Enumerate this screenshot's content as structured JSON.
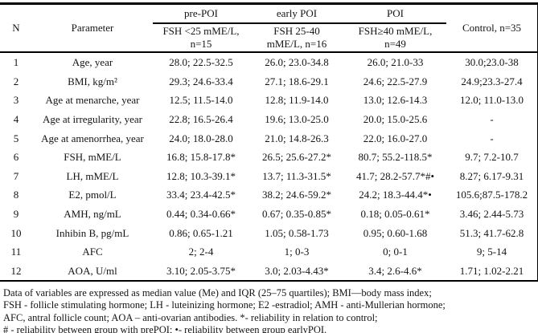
{
  "colors": {
    "border": "#000000",
    "text": "#141414",
    "background": "#ffffff"
  },
  "table": {
    "header": {
      "col_n": "N",
      "col_parameter": "Parameter",
      "groups": [
        {
          "label": "pre-POI",
          "sub": "FSH <25 mME/L,\nn=15"
        },
        {
          "label": "early POI",
          "sub": "FSH 25-40\nmME/L, n=16"
        },
        {
          "label": "POI",
          "sub": "FSH≥40 mME/L,\nn=49"
        }
      ],
      "col_control": "Control, n=35"
    },
    "rows": [
      {
        "n": "1",
        "parameter": "Age, year",
        "pre_poi": "28.0; 22.5-32.5",
        "early_poi": "26.0; 23.0-34.8",
        "poi": "26.0; 21.0-33",
        "control": "30.0;23.0-38"
      },
      {
        "n": "2",
        "parameter": "BMI, kg/m²",
        "pre_poi": "29.3; 24.6-33.4",
        "early_poi": "27.1; 18.6-29.1",
        "poi": "24.6; 22.5-27.9",
        "control": "24.9;23.3-27.4"
      },
      {
        "n": "3",
        "parameter": "Age at menarche, year",
        "pre_poi": "12.5; 11.5-14.0",
        "early_poi": "12.8; 11.9-14.0",
        "poi": "13.0; 12.6-14.3",
        "control": "12.0; 11.0-13.0"
      },
      {
        "n": "4",
        "parameter": "Age at irregularity, year",
        "pre_poi": "22.8; 16.5-26.4",
        "early_poi": "19.6; 13.0-25.0",
        "poi": "20.0; 15.0-25.6",
        "control": "-"
      },
      {
        "n": "5",
        "parameter": "Age at amenorrhea, year",
        "pre_poi": "24.0; 18.0-28.0",
        "early_poi": "21.0; 14.8-26.3",
        "poi": "22.0; 16.0-27.0",
        "control": "-"
      },
      {
        "n": "6",
        "parameter": "FSH, mME/L",
        "pre_poi": "16.8; 15.8-17.8*",
        "early_poi": "26.5; 25.6-27.2*",
        "poi": "80.7; 55.2-118.5*",
        "control": "9.7; 7.2-10.7"
      },
      {
        "n": "7",
        "parameter": "LH, mME/L",
        "pre_poi": "12.8; 10.3-39.1*",
        "early_poi": "13.7; 11.3-31.5*",
        "poi": "41.7; 28.2-57.7*#•",
        "control": "8.27; 6.17-9.31"
      },
      {
        "n": "8",
        "parameter": "E2, pmol/L",
        "pre_poi": "33.4; 23.4-42.5*",
        "early_poi": "38.2; 24.6-59.2*",
        "poi": "24.2; 18.3-44.4*•",
        "control": "105.6;87.5-178.2"
      },
      {
        "n": "9",
        "parameter": "AMH, ng/mL",
        "pre_poi": "0.44; 0.34-0.66*",
        "early_poi": "0.67; 0.35-0.85*",
        "poi": "0.18; 0.05-0.61*",
        "control": "3.46; 2.44-5.73"
      },
      {
        "n": "10",
        "parameter": "Inhibin B, pg/mL",
        "pre_poi": "0.86; 0.65-1.21",
        "early_poi": "1.05; 0.58-1.73",
        "poi": "0.95; 0.60-1.68",
        "control": "51.3; 41.7-62.8"
      },
      {
        "n": "11",
        "parameter": "AFC",
        "pre_poi": "2; 2-4",
        "early_poi": "1; 0-3",
        "poi": "0; 0-1",
        "control": "9; 5-14"
      },
      {
        "n": "12",
        "parameter": "AOA, U/ml",
        "pre_poi": "3.10; 2.05-3.75*",
        "early_poi": "3.0; 2.03-4.43*",
        "poi": "3.4; 2.6-4.6*",
        "control": "1.71; 1.02-2.21"
      }
    ]
  },
  "footnote": {
    "lines": [
      "Data of variables are expressed as median value (Me) and IQR (25–75 quartiles); BMI—body mass index;",
      "FSH - follicle stimulating hormone; LH - luteinizing hormone; E2 -estradiol; AMH - anti-Mullerian hormone;",
      "AFC, antral follicle count; AOA – anti-ovarian antibodies. *- reliability in relation to control;",
      "# - reliability between group with prePOI; •- reliability between group earlyPOI."
    ]
  }
}
